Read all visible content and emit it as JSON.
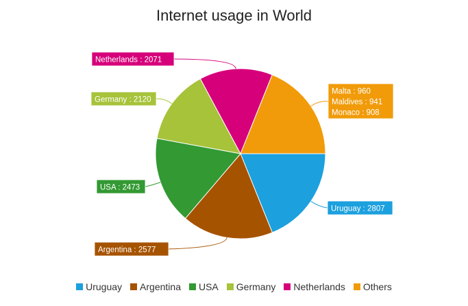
{
  "chart_data": {
    "type": "pie",
    "title": "Internet usage in World",
    "slices": [
      {
        "name": "Uruguay",
        "value": 2807,
        "color": "#1ca0de"
      },
      {
        "name": "Argentina",
        "value": 2577,
        "color": "#a65300"
      },
      {
        "name": "USA",
        "value": 2473,
        "color": "#339933"
      },
      {
        "name": "Germany",
        "value": 2120,
        "color": "#a6c33a"
      },
      {
        "name": "Netherlands",
        "value": 2071,
        "color": "#d6007a"
      },
      {
        "name": "Others",
        "value": 2809,
        "color": "#f19b0a"
      }
    ],
    "data_labels": [
      {
        "slice": "Uruguay",
        "lines": [
          "Uruguay : 2807"
        ]
      },
      {
        "slice": "Argentina",
        "lines": [
          "Argentina : 2577"
        ]
      },
      {
        "slice": "USA",
        "lines": [
          "USA : 2473"
        ]
      },
      {
        "slice": "Germany",
        "lines": [
          "Germany : 2120"
        ]
      },
      {
        "slice": "Netherlands",
        "lines": [
          "Netherlands : 2071"
        ]
      },
      {
        "slice": "Others",
        "lines": [
          "Malta : 960",
          "Maldives : 941",
          "Monaco : 908"
        ]
      }
    ],
    "legend": {
      "position": "bottom",
      "entries": [
        "Uruguay",
        "Argentina",
        "USA",
        "Germany",
        "Netherlands",
        "Others"
      ]
    }
  }
}
